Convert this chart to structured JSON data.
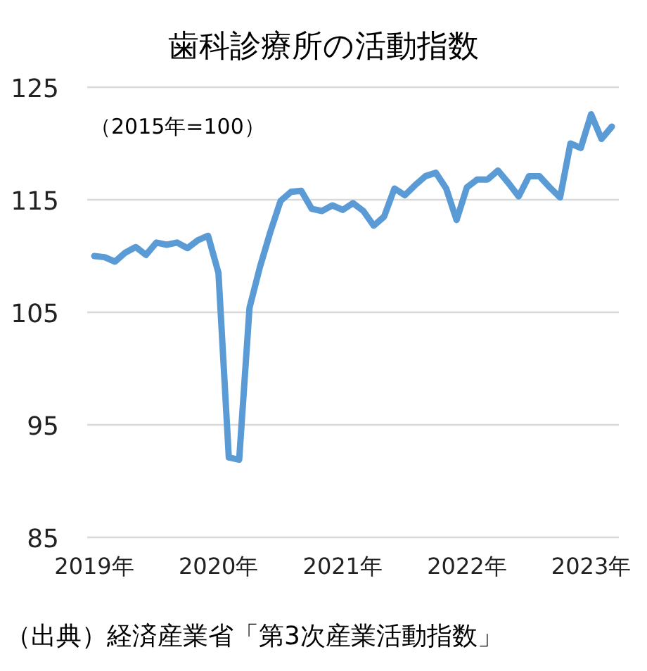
{
  "chart_data": {
    "type": "line",
    "title": "歯科診療所の活動指数",
    "categories": [
      "2019年",
      null,
      null,
      null,
      null,
      null,
      null,
      null,
      null,
      null,
      null,
      null,
      "2020年",
      null,
      null,
      null,
      null,
      null,
      null,
      null,
      null,
      null,
      null,
      null,
      "2021年",
      null,
      null,
      null,
      null,
      null,
      null,
      null,
      null,
      null,
      null,
      null,
      "2022年",
      null,
      null,
      null,
      null,
      null,
      null,
      null,
      null,
      null,
      null,
      null,
      "2023年",
      null,
      null
    ],
    "series": [
      {
        "color": "#5b9bd5",
        "values": [
          110.0,
          109.9,
          109.5,
          110.3,
          110.8,
          110.1,
          111.2,
          111.0,
          111.2,
          110.7,
          111.4,
          111.8,
          108.5,
          92.1,
          91.9,
          105.4,
          109.0,
          112.1,
          114.9,
          115.7,
          115.8,
          114.2,
          114.0,
          114.5,
          114.1,
          114.7,
          114.0,
          112.7,
          113.5,
          116.0,
          115.4,
          116.3,
          117.1,
          117.4,
          116.0,
          113.2,
          116.1,
          116.8,
          116.8,
          117.6,
          116.5,
          115.3,
          117.1,
          117.1,
          116.1,
          115.2,
          120.0,
          119.6,
          122.6,
          120.4,
          121.5
        ]
      }
    ],
    "ylim": [
      85,
      125
    ],
    "yticks": [
      85,
      95,
      105,
      115,
      125
    ],
    "grid": "y",
    "annotations": [
      "（2015年=100）",
      "（出典）経済産業省「第3次産業活動指数」"
    ]
  }
}
